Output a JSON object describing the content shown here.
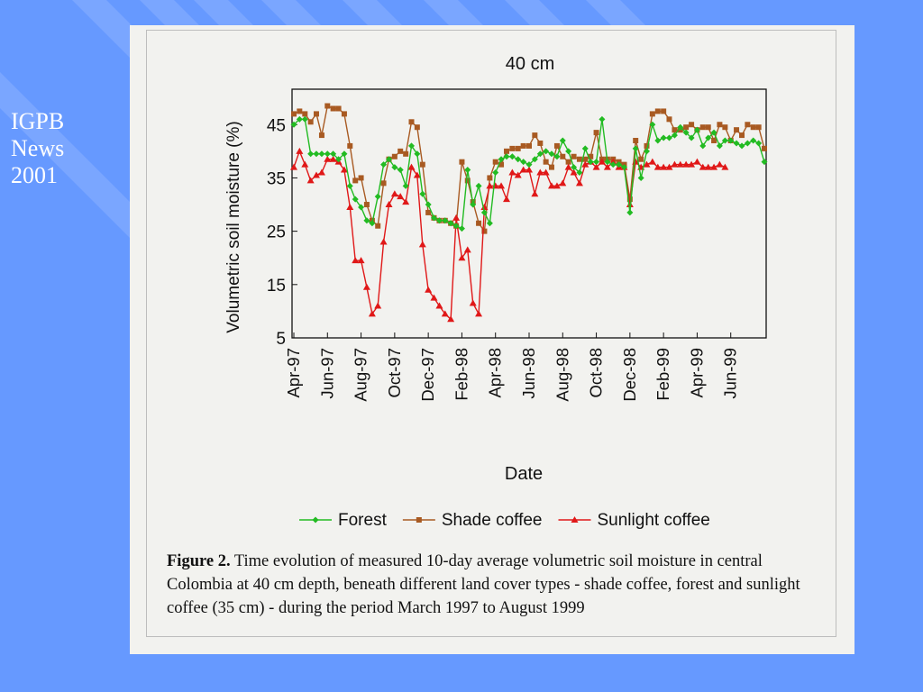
{
  "side_label": "IGPB\nNews\n2001",
  "colors": {
    "background": "#6699ff",
    "stripe": "#7aa6ff",
    "panel": "#f2f2ef",
    "forest": "#22bb22",
    "shade": "#a85a22",
    "sun": "#e01818"
  },
  "caption": {
    "lead": "Figure 2.",
    "text": " Time evolution of measured 10-day average volumetric soil moisture in central Colombia at 40 cm depth, beneath different land cover types - shade coffee, forest and sunlight coffee (35 cm) - during the period March 1997 to August 1999"
  },
  "chart_data": {
    "type": "line",
    "title": "40 cm",
    "xlabel": "Date",
    "ylabel": "Volumetric soil moisture (%)",
    "ylim": [
      5,
      50
    ],
    "yticks": [
      5,
      15,
      25,
      35,
      45
    ],
    "xticks": [
      "Apr-97",
      "Jun-97",
      "Aug-97",
      "Oct-97",
      "Dec-97",
      "Feb-98",
      "Apr-98",
      "Jun-98",
      "Aug-98",
      "Oct-98",
      "Dec-98",
      "Feb-99",
      "Apr-99",
      "Jun-99"
    ],
    "grid": false,
    "legend": "bottom",
    "series": [
      {
        "name": "Forest",
        "color": "#22bb22",
        "marker": "diamond",
        "x": [
          0.0,
          0.17,
          0.33,
          0.5,
          0.67,
          0.83,
          1.0,
          1.17,
          1.33,
          1.5,
          1.67,
          1.83,
          2.0,
          2.17,
          2.33,
          2.5,
          2.67,
          2.83,
          3.0,
          3.17,
          3.33,
          3.5,
          3.67,
          3.83,
          4.0,
          4.17,
          4.33,
          4.5,
          4.67,
          4.83,
          5.0,
          5.17,
          5.33,
          5.5,
          5.67,
          5.83,
          6.0,
          6.17,
          6.33,
          6.5,
          6.67,
          6.83,
          7.0,
          7.17,
          7.33,
          7.5,
          7.67,
          7.83,
          8.0,
          8.17,
          8.33,
          8.5,
          8.67,
          8.83,
          9.0,
          9.17,
          9.33,
          9.5,
          9.67,
          9.83,
          10.0,
          10.17,
          10.33,
          10.5,
          10.67,
          10.83,
          11.0,
          11.17,
          11.33,
          11.5,
          11.67,
          11.83,
          12.0,
          12.17,
          12.33,
          12.5,
          12.67,
          12.83,
          13.0,
          13.17,
          13.33,
          13.5,
          13.67,
          13.83,
          14.0
        ],
        "values": [
          45,
          46,
          46,
          39.5,
          39.5,
          39.5,
          39.5,
          39.5,
          38.5,
          39.5,
          33.5,
          31,
          29.5,
          27,
          26.5,
          31.5,
          37.5,
          38.5,
          37,
          36.5,
          33.5,
          41,
          39.5,
          32,
          30,
          27.5,
          27,
          27,
          26.5,
          26,
          25.5,
          36.5,
          30,
          33.5,
          28.5,
          26.5,
          36,
          38.5,
          39,
          39,
          38.5,
          38,
          37.5,
          38.5,
          39.5,
          40,
          39.5,
          39,
          42,
          40,
          37,
          36,
          40.5,
          38,
          38,
          46,
          38,
          37.5,
          37.5,
          37,
          28.5,
          40.5,
          35,
          40,
          45,
          42,
          42.5,
          42.5,
          43,
          44.5,
          43.5,
          42.5,
          44,
          41,
          42.5,
          43.5,
          41,
          42,
          42,
          41.5,
          41,
          41.5,
          42,
          41.5,
          38
        ]
      },
      {
        "name": "Shade coffee",
        "color": "#a85a22",
        "marker": "square",
        "x": [
          0.0,
          0.17,
          0.33,
          0.5,
          0.67,
          0.83,
          1.0,
          1.17,
          1.33,
          1.5,
          1.67,
          1.83,
          2.0,
          2.17,
          2.33,
          2.5,
          2.67,
          2.83,
          3.0,
          3.17,
          3.33,
          3.5,
          3.67,
          3.83,
          4.0,
          4.17,
          4.33,
          4.5,
          4.67,
          4.83,
          5.0,
          5.17,
          5.33,
          5.5,
          5.67,
          5.83,
          6.0,
          6.17,
          6.33,
          6.5,
          6.67,
          6.83,
          7.0,
          7.17,
          7.33,
          7.5,
          7.67,
          7.83,
          8.0,
          8.17,
          8.33,
          8.5,
          8.67,
          8.83,
          9.0,
          9.17,
          9.33,
          9.5,
          9.67,
          9.83,
          10.0,
          10.17,
          10.33,
          10.5,
          10.67,
          10.83,
          11.0,
          11.17,
          11.33,
          11.5,
          11.67,
          11.83,
          12.0,
          12.17,
          12.33,
          12.5,
          12.67,
          12.83,
          13.0,
          13.17,
          13.33,
          13.5,
          13.67,
          13.83,
          14.0
        ],
        "values": [
          47,
          47.5,
          47,
          45.5,
          47,
          43,
          48.5,
          48,
          48,
          47,
          41,
          34.5,
          35,
          30,
          27,
          26,
          34,
          38.5,
          39,
          40,
          39.5,
          45.5,
          44.5,
          37.5,
          28.5,
          27.5,
          27,
          27,
          26.5,
          26,
          38,
          34.5,
          30.5,
          26.5,
          25,
          35,
          38,
          37.5,
          40,
          40.5,
          40.5,
          41,
          41,
          43,
          41.5,
          38,
          37,
          41,
          39,
          38,
          39,
          38.5,
          38.5,
          39,
          43.5,
          38.5,
          38.5,
          38.5,
          38,
          37.5,
          31,
          42,
          38.5,
          41,
          47,
          47.5,
          47.5,
          46,
          44,
          44,
          44.5,
          45,
          44,
          44.5,
          44.5,
          42,
          45,
          44.5,
          42,
          44,
          43,
          45,
          44.5,
          44.5,
          40.5
        ]
      },
      {
        "name": "Sunlight coffee",
        "color": "#e01818",
        "marker": "triangle",
        "x": [
          0.0,
          0.17,
          0.33,
          0.5,
          0.67,
          0.83,
          1.0,
          1.17,
          1.33,
          1.5,
          1.67,
          1.83,
          2.0,
          2.17,
          2.33,
          2.5,
          2.67,
          2.83,
          3.0,
          3.17,
          3.33,
          3.5,
          3.67,
          3.83,
          4.0,
          4.17,
          4.33,
          4.5,
          4.67,
          4.83,
          5.0,
          5.17,
          5.33,
          5.5,
          5.67,
          5.83,
          6.0,
          6.17,
          6.33,
          6.5,
          6.67,
          6.83,
          7.0,
          7.17,
          7.33,
          7.5,
          7.67,
          7.83,
          8.0,
          8.17,
          8.33,
          8.5,
          8.67,
          8.83,
          9.0,
          9.17,
          9.33,
          9.5,
          9.67,
          9.83,
          10.0,
          10.17,
          10.33,
          10.5,
          10.67,
          10.83,
          11.0,
          11.17,
          11.33,
          11.5,
          11.67,
          11.83,
          12.0,
          12.17,
          12.33,
          12.5,
          12.67,
          12.83
        ],
        "values": [
          37,
          40,
          37.5,
          34.5,
          35.5,
          36,
          38.5,
          38.5,
          38,
          36.5,
          29.5,
          19.5,
          19.5,
          14.5,
          9.5,
          11,
          23,
          30,
          32,
          31.5,
          30.5,
          37,
          35.5,
          22.5,
          14,
          12.5,
          11,
          9.5,
          8.5,
          27.5,
          20,
          21.5,
          11.5,
          9.5,
          29.5,
          33.5,
          33.5,
          33.5,
          31,
          36,
          35.5,
          36.5,
          36.5,
          32,
          36,
          36,
          33.5,
          33.5,
          34,
          37,
          36,
          34,
          37.5,
          38,
          37,
          38,
          37,
          38,
          37,
          37,
          30,
          38,
          37,
          37.5,
          38,
          37,
          37,
          37,
          37.5,
          37.5,
          37.5,
          37.5,
          38,
          37,
          37,
          37,
          37.5,
          37
        ]
      }
    ]
  }
}
